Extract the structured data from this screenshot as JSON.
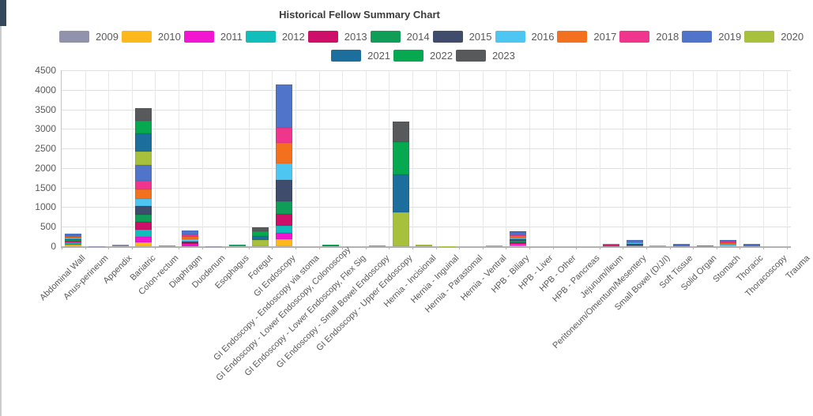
{
  "chart": {
    "title": "Historical Fellow Summary Chart"
  },
  "chart_data": {
    "type": "bar",
    "stacked": true,
    "title": "Historical Fellow Summary Chart",
    "xlabel": "",
    "ylabel": "",
    "ylim": [
      0,
      4500
    ],
    "ytick_step": 500,
    "yticks": [
      0,
      500,
      1000,
      1500,
      2000,
      2500,
      3000,
      3500,
      4000,
      4500
    ],
    "grid": true,
    "legend_position": "top",
    "categories": [
      "Abdominal Wall",
      "Anus-perineum",
      "Appendix",
      "Bariatric",
      "Colon-rectum",
      "Diaphragm",
      "Duodenum",
      "Esophagus",
      "Foregut",
      "GI Endoscopy",
      "GI Endoscopy - Endoscopy via stoma",
      "GI Endoscopy - Lower Endoscopy, Colonoscopy",
      "GI Endoscopy - Lower Endoscopy, Flex Sig",
      "GI Endoscopy - Small Bowel Endoscopy",
      "GI Endoscopy - Upper Endoscopy",
      "Hernia - Incisional",
      "Hernia - Inguinal",
      "Hernia - Parastomal",
      "Hernia - Ventral",
      "HPB - Biliary",
      "HPB - Liver",
      "HPB - Other",
      "HPB - Pancreas",
      "Jejunum/Ileum",
      "Peritoneum/Omentum/Mesentery",
      "Small Bowel (D/J/I)",
      "Soft Tissue",
      "Solid Organ",
      "Stomach",
      "Thoracic",
      "Thoracoscopy",
      "Trauma"
    ],
    "series": [
      {
        "name": "2009",
        "color": "#9193AE",
        "values": [
          0,
          10,
          40,
          0,
          30,
          0,
          8,
          0,
          0,
          0,
          0,
          0,
          0,
          20,
          0,
          0,
          0,
          0,
          0,
          0,
          0,
          0,
          0,
          0,
          0,
          0,
          0,
          0,
          0,
          0,
          0,
          0
        ]
      },
      {
        "name": "2010",
        "color": "#FDB81E",
        "values": [
          40,
          0,
          0,
          100,
          0,
          0,
          0,
          0,
          0,
          175,
          0,
          0,
          0,
          0,
          0,
          0,
          0,
          0,
          0,
          25,
          0,
          0,
          0,
          0,
          0,
          0,
          0,
          0,
          20,
          0,
          0,
          0
        ]
      },
      {
        "name": "2011",
        "color": "#F216D3",
        "values": [
          30,
          0,
          0,
          140,
          0,
          60,
          0,
          0,
          0,
          170,
          0,
          0,
          0,
          0,
          0,
          0,
          0,
          0,
          0,
          20,
          0,
          0,
          0,
          0,
          0,
          0,
          0,
          0,
          0,
          0,
          0,
          0
        ]
      },
      {
        "name": "2012",
        "color": "#12BEBB",
        "values": [
          25,
          0,
          0,
          190,
          0,
          0,
          0,
          15,
          0,
          170,
          0,
          0,
          0,
          0,
          0,
          0,
          0,
          0,
          0,
          25,
          0,
          0,
          0,
          0,
          25,
          0,
          0,
          0,
          0,
          0,
          0,
          0
        ]
      },
      {
        "name": "2013",
        "color": "#CE0F69",
        "values": [
          30,
          0,
          0,
          195,
          0,
          30,
          0,
          0,
          0,
          315,
          0,
          0,
          0,
          0,
          0,
          0,
          0,
          0,
          0,
          30,
          0,
          0,
          0,
          20,
          0,
          0,
          0,
          0,
          0,
          0,
          0,
          0
        ]
      },
      {
        "name": "2014",
        "color": "#109D58",
        "values": [
          30,
          0,
          0,
          190,
          0,
          0,
          0,
          20,
          0,
          330,
          0,
          0,
          0,
          0,
          0,
          0,
          0,
          0,
          0,
          35,
          0,
          0,
          0,
          0,
          0,
          0,
          0,
          0,
          0,
          0,
          0,
          0
        ]
      },
      {
        "name": "2015",
        "color": "#3F4C6B",
        "values": [
          35,
          0,
          0,
          215,
          0,
          40,
          0,
          15,
          0,
          540,
          0,
          0,
          0,
          0,
          0,
          0,
          0,
          0,
          0,
          45,
          0,
          0,
          0,
          0,
          30,
          0,
          0,
          0,
          0,
          0,
          0,
          0
        ]
      },
      {
        "name": "2016",
        "color": "#4EC6F2",
        "values": [
          20,
          0,
          0,
          190,
          0,
          45,
          0,
          0,
          0,
          410,
          0,
          0,
          0,
          0,
          0,
          0,
          0,
          0,
          0,
          30,
          0,
          0,
          0,
          0,
          25,
          0,
          0,
          0,
          25,
          0,
          0,
          0
        ]
      },
      {
        "name": "2017",
        "color": "#F3701E",
        "values": [
          30,
          0,
          0,
          235,
          0,
          75,
          0,
          0,
          0,
          530,
          0,
          0,
          0,
          0,
          0,
          0,
          0,
          0,
          0,
          45,
          0,
          0,
          0,
          0,
          30,
          0,
          0,
          0,
          45,
          0,
          0,
          0
        ]
      },
      {
        "name": "2018",
        "color": "#F0368C",
        "values": [
          30,
          0,
          0,
          220,
          0,
          60,
          0,
          0,
          0,
          390,
          0,
          0,
          0,
          0,
          0,
          0,
          0,
          0,
          0,
          40,
          0,
          0,
          0,
          35,
          0,
          0,
          0,
          15,
          40,
          0,
          0,
          0
        ]
      },
      {
        "name": "2019",
        "color": "#4F74C9",
        "values": [
          50,
          0,
          0,
          400,
          0,
          90,
          0,
          0,
          0,
          1110,
          0,
          0,
          0,
          0,
          0,
          0,
          0,
          0,
          0,
          60,
          0,
          0,
          0,
          0,
          50,
          0,
          55,
          0,
          35,
          70,
          0,
          0
        ]
      },
      {
        "name": "2020",
        "color": "#A8C13D",
        "values": [
          0,
          0,
          0,
          355,
          0,
          0,
          0,
          0,
          170,
          0,
          0,
          0,
          0,
          0,
          870,
          35,
          6,
          0,
          15,
          0,
          0,
          0,
          0,
          0,
          0,
          15,
          0,
          0,
          0,
          0,
          0,
          0
        ]
      },
      {
        "name": "2021",
        "color": "#1C6E9C",
        "values": [
          0,
          0,
          0,
          450,
          0,
          0,
          0,
          0,
          85,
          0,
          0,
          0,
          0,
          0,
          965,
          0,
          0,
          0,
          0,
          35,
          0,
          0,
          0,
          0,
          0,
          0,
          0,
          0,
          0,
          0,
          0,
          0
        ]
      },
      {
        "name": "2022",
        "color": "#06A94F",
        "values": [
          0,
          0,
          0,
          325,
          0,
          0,
          0,
          0,
          125,
          0,
          0,
          50,
          0,
          0,
          830,
          0,
          0,
          0,
          0,
          0,
          0,
          0,
          0,
          0,
          0,
          0,
          0,
          0,
          0,
          0,
          0,
          0
        ]
      },
      {
        "name": "2023",
        "color": "#58595B",
        "values": [
          0,
          0,
          0,
          335,
          0,
          0,
          0,
          0,
          100,
          0,
          0,
          0,
          0,
          0,
          520,
          6,
          0,
          0,
          15,
          0,
          0,
          0,
          0,
          0,
          0,
          0,
          0,
          0,
          0,
          0,
          0,
          0
        ]
      }
    ],
    "legend_rows": [
      [
        "2009",
        "2010",
        "2011",
        "2012",
        "2013",
        "2014",
        "2015",
        "2016",
        "2017",
        "2018",
        "2019",
        "2020"
      ],
      [
        "2021",
        "2022",
        "2023"
      ]
    ]
  }
}
